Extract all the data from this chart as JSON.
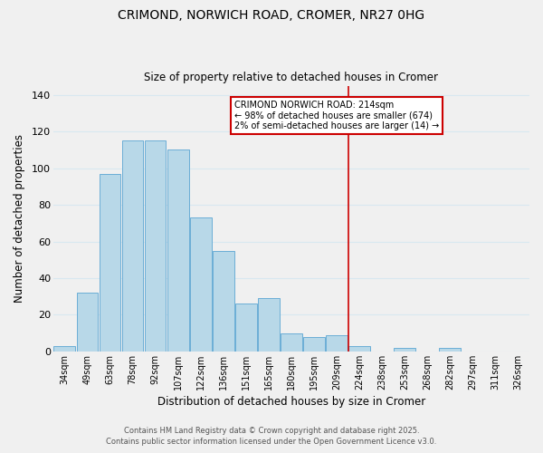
{
  "title": "CRIMOND, NORWICH ROAD, CROMER, NR27 0HG",
  "subtitle": "Size of property relative to detached houses in Cromer",
  "xlabel": "Distribution of detached houses by size in Cromer",
  "ylabel": "Number of detached properties",
  "footer_line1": "Contains HM Land Registry data © Crown copyright and database right 2025.",
  "footer_line2": "Contains public sector information licensed under the Open Government Licence v3.0.",
  "categories": [
    "34sqm",
    "49sqm",
    "63sqm",
    "78sqm",
    "92sqm",
    "107sqm",
    "122sqm",
    "136sqm",
    "151sqm",
    "165sqm",
    "180sqm",
    "195sqm",
    "209sqm",
    "224sqm",
    "238sqm",
    "253sqm",
    "268sqm",
    "282sqm",
    "297sqm",
    "311sqm",
    "326sqm"
  ],
  "values": [
    3,
    32,
    97,
    115,
    115,
    110,
    73,
    55,
    26,
    29,
    10,
    8,
    9,
    3,
    0,
    2,
    0,
    2,
    0,
    0,
    0
  ],
  "bar_color": "#b8d8e8",
  "bar_edge_color": "#6baed6",
  "background_color": "#f0f0f0",
  "grid_color": "#d8e8f0",
  "ylim": [
    0,
    145
  ],
  "yticks": [
    0,
    20,
    40,
    60,
    80,
    100,
    120,
    140
  ],
  "vline_x_index": 12.5,
  "vline_color": "#cc0000",
  "annotation_title": "CRIMOND NORWICH ROAD: 214sqm",
  "annotation_line1": "← 98% of detached houses are smaller (674)",
  "annotation_line2": "2% of semi-detached houses are larger (14) →"
}
